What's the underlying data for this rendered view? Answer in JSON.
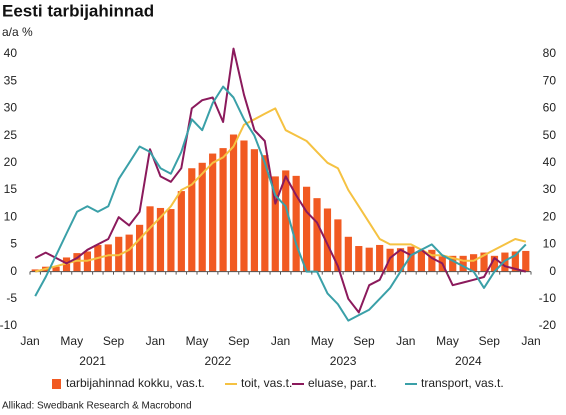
{
  "chart_data": {
    "type": "combo",
    "title": "Eesti tarbijahinnad",
    "subtitle": "a/a %",
    "source": "Allikad: Swedbank Research & Macrobond",
    "categories": [
      "Jan",
      null,
      null,
      null,
      "May",
      null,
      null,
      null,
      "Sep",
      null,
      null,
      null,
      "Jan",
      null,
      null,
      null,
      "May",
      null,
      null,
      null,
      "Sep",
      null,
      null,
      null,
      "Jan",
      null,
      null,
      null,
      "May",
      null,
      null,
      null,
      "Sep",
      null,
      null,
      null,
      "Jan",
      null,
      null,
      null,
      "May",
      null,
      null,
      null,
      "Sep",
      null,
      null,
      null,
      "Jan"
    ],
    "year_labels": [
      "2021",
      "2022",
      "2023",
      "2024"
    ],
    "ylim": [
      -10,
      40
    ],
    "yticks": [
      -10,
      -5,
      0,
      5,
      10,
      15,
      20,
      25,
      30,
      35,
      40
    ],
    "y2lim": [
      -20,
      80
    ],
    "y2ticks": [
      -20,
      -10,
      0,
      10,
      20,
      30,
      40,
      50,
      60,
      70,
      80
    ],
    "grid": false,
    "series": [
      {
        "name": "tarbijahinnad kokku, vas.t.",
        "type": "bar",
        "color": "#f15a22",
        "values": [
          0.4,
          0.9,
          0.9,
          2.6,
          3.4,
          3.7,
          4.9,
          5.0,
          6.4,
          6.8,
          8.6,
          12.0,
          11.7,
          11.5,
          14.8,
          19.0,
          20.0,
          21.7,
          22.7,
          25.2,
          24.1,
          22.5,
          21.4,
          17.5,
          18.6,
          17.6,
          15.6,
          13.5,
          11.6,
          9.6,
          6.4,
          4.7,
          4.4,
          4.9,
          4.2,
          4.3,
          4.6,
          3.9,
          4.0,
          2.8,
          2.9,
          2.9,
          3.2,
          3.5,
          2.9,
          3.5,
          3.7,
          3.8,
          null
        ]
      },
      {
        "name": "toit, vas.t.",
        "type": "line",
        "color": "#f5c242",
        "values": [
          0,
          0.5,
          1,
          1.5,
          2,
          2,
          2.5,
          3,
          3,
          4,
          6,
          8,
          10,
          12,
          15,
          16,
          18,
          20,
          21,
          23,
          27,
          28,
          29,
          30,
          26,
          25,
          24,
          22,
          20,
          19,
          15,
          12,
          9,
          6,
          5,
          5,
          5,
          4,
          3,
          3,
          2.5,
          2,
          2,
          3,
          4,
          5,
          6,
          5.5,
          null
        ]
      },
      {
        "name": "eluase, par.t.",
        "type": "line",
        "axis": "y2",
        "color": "#8b1a5c",
        "values": [
          5,
          7,
          5,
          3,
          5,
          8,
          10,
          12,
          20,
          17,
          22,
          45,
          35,
          33,
          38,
          60,
          63,
          64,
          55,
          82,
          65,
          52,
          48,
          25,
          35,
          28,
          22,
          18,
          10,
          2,
          -10,
          -15,
          -5,
          -3,
          5,
          8,
          6,
          8,
          5,
          3,
          -5,
          -4,
          -3,
          -2,
          5,
          2,
          1,
          0,
          null
        ]
      },
      {
        "name": "transport, vas.t.",
        "type": "line",
        "color": "#3aa0a8",
        "values": [
          -4.5,
          -1,
          3,
          7,
          11,
          12,
          11,
          12,
          17,
          20,
          23,
          22,
          19,
          18,
          22,
          28,
          26,
          31,
          34,
          32,
          28,
          25,
          20,
          14,
          12,
          5,
          0,
          0,
          -4,
          -6,
          -9,
          -8,
          -7,
          -5,
          -3,
          0,
          3,
          4,
          5,
          3,
          2,
          1,
          0,
          -3,
          0,
          2,
          3,
          5,
          null
        ]
      }
    ]
  }
}
